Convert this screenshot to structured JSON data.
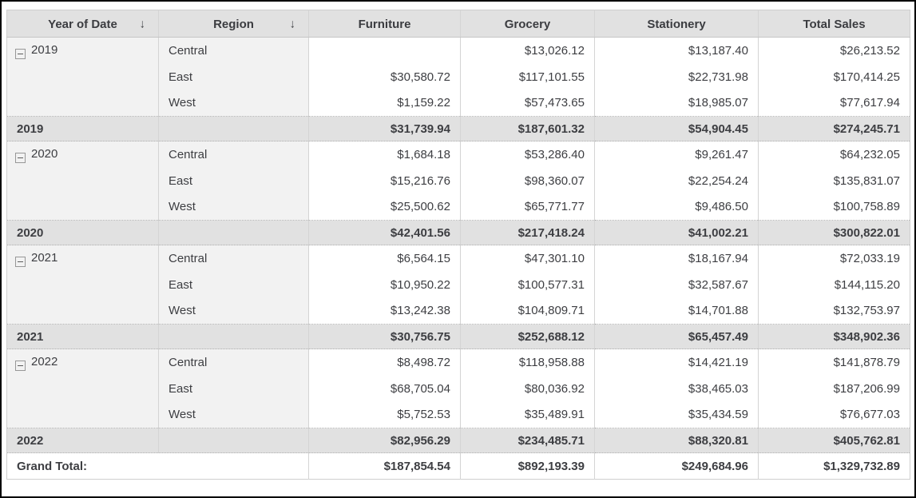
{
  "table": {
    "sort_icon": "↓",
    "columns": [
      {
        "label": "Year of Date",
        "sortable": true
      },
      {
        "label": "Region",
        "sortable": true
      },
      {
        "label": "Furniture",
        "sortable": false
      },
      {
        "label": "Grocery",
        "sortable": false
      },
      {
        "label": "Stationery",
        "sortable": false
      },
      {
        "label": "Total Sales",
        "sortable": false
      }
    ],
    "groups": [
      {
        "year": "2019",
        "rows": [
          {
            "region": "Central",
            "values": [
              "",
              "$13,026.12",
              "$13,187.40",
              "$26,213.52"
            ]
          },
          {
            "region": "East",
            "values": [
              "$30,580.72",
              "$117,101.55",
              "$22,731.98",
              "$170,414.25"
            ]
          },
          {
            "region": "West",
            "values": [
              "$1,159.22",
              "$57,473.65",
              "$18,985.07",
              "$77,617.94"
            ]
          }
        ],
        "subtotal": {
          "label": "2019",
          "values": [
            "$31,739.94",
            "$187,601.32",
            "$54,904.45",
            "$274,245.71"
          ]
        }
      },
      {
        "year": "2020",
        "rows": [
          {
            "region": "Central",
            "values": [
              "$1,684.18",
              "$53,286.40",
              "$9,261.47",
              "$64,232.05"
            ]
          },
          {
            "region": "East",
            "values": [
              "$15,216.76",
              "$98,360.07",
              "$22,254.24",
              "$135,831.07"
            ]
          },
          {
            "region": "West",
            "values": [
              "$25,500.62",
              "$65,771.77",
              "$9,486.50",
              "$100,758.89"
            ]
          }
        ],
        "subtotal": {
          "label": "2020",
          "values": [
            "$42,401.56",
            "$217,418.24",
            "$41,002.21",
            "$300,822.01"
          ]
        }
      },
      {
        "year": "2021",
        "rows": [
          {
            "region": "Central",
            "values": [
              "$6,564.15",
              "$47,301.10",
              "$18,167.94",
              "$72,033.19"
            ]
          },
          {
            "region": "East",
            "values": [
              "$10,950.22",
              "$100,577.31",
              "$32,587.67",
              "$144,115.20"
            ]
          },
          {
            "region": "West",
            "values": [
              "$13,242.38",
              "$104,809.71",
              "$14,701.88",
              "$132,753.97"
            ]
          }
        ],
        "subtotal": {
          "label": "2021",
          "values": [
            "$30,756.75",
            "$252,688.12",
            "$65,457.49",
            "$348,902.36"
          ]
        }
      },
      {
        "year": "2022",
        "rows": [
          {
            "region": "Central",
            "values": [
              "$8,498.72",
              "$118,958.88",
              "$14,421.19",
              "$141,878.79"
            ]
          },
          {
            "region": "East",
            "values": [
              "$68,705.04",
              "$80,036.92",
              "$38,465.03",
              "$187,206.99"
            ]
          },
          {
            "region": "West",
            "values": [
              "$5,752.53",
              "$35,489.91",
              "$35,434.59",
              "$76,677.03"
            ]
          }
        ],
        "subtotal": {
          "label": "2022",
          "values": [
            "$82,956.29",
            "$234,485.71",
            "$88,320.81",
            "$405,762.81"
          ]
        }
      }
    ],
    "grand_total": {
      "label": "Grand Total:",
      "values": [
        "$187,854.54",
        "$892,193.39",
        "$249,684.96",
        "$1,329,732.89"
      ]
    }
  },
  "colors": {
    "header_bg": "#e1e1e1",
    "group_cell_bg": "#f2f2f2",
    "subtotal_bg": "#e1e1e1",
    "text": "#3d3e42",
    "column_border": "#d4d4d4",
    "frame_border": "#000000"
  }
}
